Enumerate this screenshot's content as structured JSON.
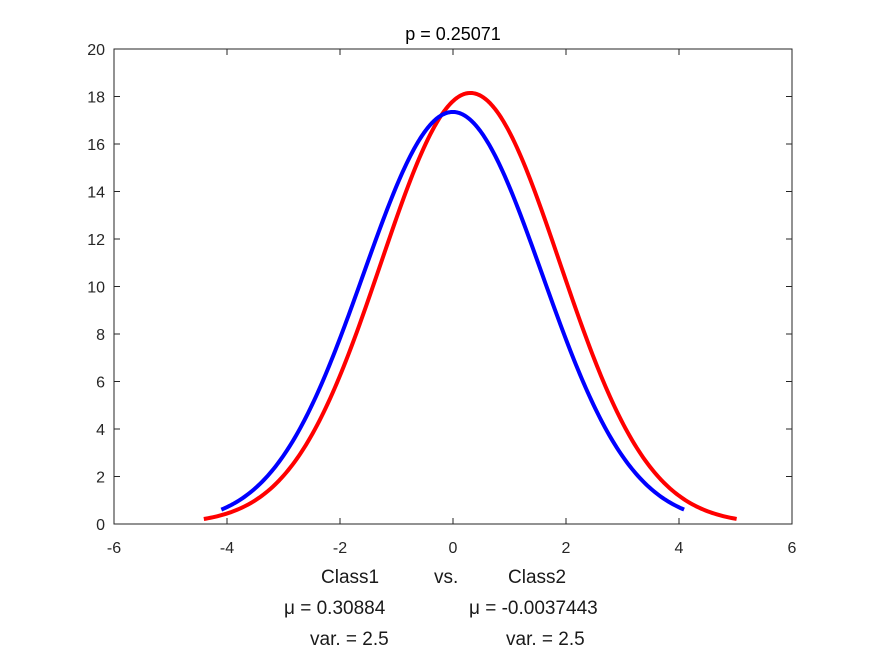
{
  "chart_data": {
    "type": "line",
    "title": "p = 0.25071",
    "xlabel": "",
    "ylabel": "",
    "xlim": [
      -6,
      6
    ],
    "ylim": [
      0,
      20
    ],
    "xticks": [
      -6,
      -4,
      -2,
      0,
      2,
      4,
      6
    ],
    "yticks": [
      0,
      2,
      4,
      6,
      8,
      10,
      12,
      14,
      16,
      18,
      20
    ],
    "grid": false,
    "series": [
      {
        "color": "#ff0000",
        "mean": 0.30884,
        "variance": 2.5,
        "peak": 18.15,
        "x_range": [
          -4.41,
          5.02
        ]
      },
      {
        "color": "#0000ff",
        "mean": -0.0037443,
        "variance": 2.5,
        "peak": 17.35,
        "x_range": [
          -4.1,
          4.09
        ]
      }
    ]
  },
  "xlabel_lines": {
    "class1": "Class1",
    "vs": "vs.",
    "class2": "Class2",
    "mu1": "μ = 0.30884",
    "mu2": "μ = -0.0037443",
    "var1": "var. = 2.5",
    "var2": "var. = 2.5"
  }
}
